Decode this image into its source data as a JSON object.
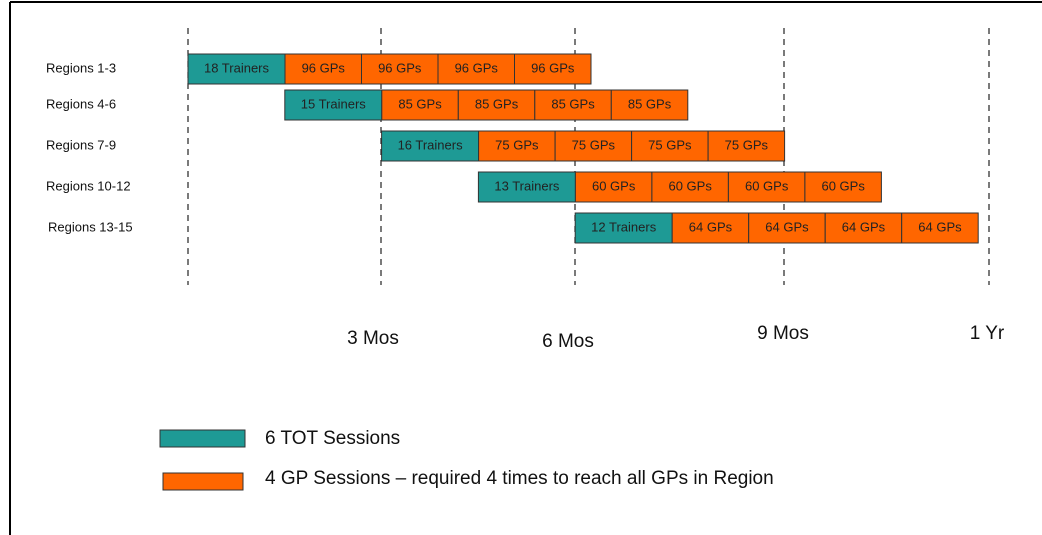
{
  "rows": [
    {
      "label": "Regions 1-3",
      "trainers": "18 Trainers",
      "gps": [
        "96 GPs",
        "96 GPs",
        "96 GPs",
        "96 GPs"
      ]
    },
    {
      "label": "Regions 4-6",
      "trainers": "15 Trainers",
      "gps": [
        "85 GPs",
        "85 GPs",
        "85 GPs",
        "85 GPs"
      ]
    },
    {
      "label": "Regions 7-9",
      "trainers": "16 Trainers",
      "gps": [
        "75 GPs",
        "75 GPs",
        "75 GPs",
        "75 GPs"
      ]
    },
    {
      "label": "Regions 10-12",
      "trainers": "13 Trainers",
      "gps": [
        "60 GPs",
        "60 GPs",
        "60 GPs",
        "60 GPs"
      ]
    },
    {
      "label": "Regions 13-15",
      "trainers": "12 Trainers",
      "gps": [
        "64 GPs",
        "64 GPs",
        "64 GPs",
        "64 GPs"
      ]
    }
  ],
  "time_labels": [
    "3 Mos",
    "6 Mos",
    "9 Mos",
    "1 Yr"
  ],
  "legend": [
    {
      "label": "6 TOT Sessions"
    },
    {
      "label": "4 GP Sessions – required 4 times to reach all GPs in Region"
    }
  ]
}
